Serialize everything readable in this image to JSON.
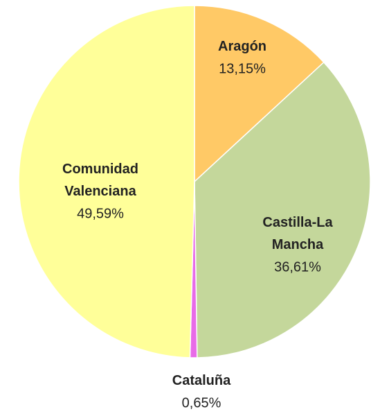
{
  "chart_data": {
    "type": "pie",
    "categories": [
      "Aragón",
      "Castilla-La Mancha",
      "Cataluña",
      "Comunidad Valenciana"
    ],
    "values": [
      13.15,
      36.61,
      0.65,
      49.59
    ],
    "value_labels": [
      "13,15%",
      "36,61%",
      "0,65%",
      "49,59%"
    ],
    "colors": [
      "#ffc966",
      "#c4d79b",
      "#e86be8",
      "#ffff99"
    ]
  }
}
